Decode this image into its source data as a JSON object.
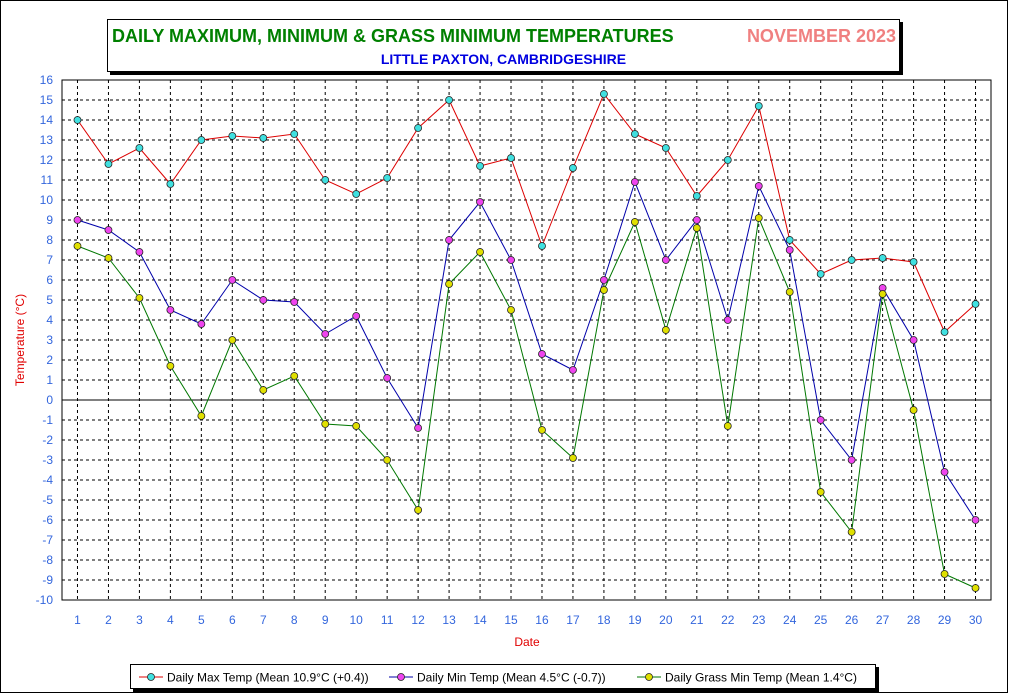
{
  "title": {
    "main": "DAILY MAXIMUM, MINIMUM & GRASS MINIMUM TEMPERATURES",
    "month": "NOVEMBER 2023",
    "subtitle": "LITTLE PAXTON, CAMBRIDGESHIRE"
  },
  "colors": {
    "title_main": "#008000",
    "title_month": "#f08080",
    "subtitle": "#0000e0",
    "axis_labels": "#e00000",
    "tick_labels": "#3366dd"
  },
  "chart_data": {
    "type": "line",
    "title": "DAILY MAXIMUM, MINIMUM & GRASS MINIMUM TEMPERATURES",
    "xlabel": "Date",
    "ylabel": "Temperature (°C)",
    "ylim": [
      -10,
      16
    ],
    "grid": true,
    "legend_position": "bottom",
    "x": [
      1,
      2,
      3,
      4,
      5,
      6,
      7,
      8,
      9,
      10,
      11,
      12,
      13,
      14,
      15,
      16,
      17,
      18,
      19,
      20,
      21,
      22,
      23,
      24,
      25,
      26,
      27,
      28,
      29,
      30
    ],
    "series": [
      {
        "name": "Daily Max Temp (Mean 10.9°C (+0.4))",
        "line_color": "#dd0000",
        "marker_color": "#40e0e0",
        "values": [
          14.0,
          11.8,
          12.6,
          10.8,
          13.0,
          13.2,
          13.1,
          13.3,
          11.0,
          10.3,
          11.1,
          13.6,
          15.0,
          11.7,
          12.1,
          7.7,
          11.6,
          15.3,
          13.3,
          12.6,
          10.2,
          12.0,
          14.7,
          8.0,
          6.3,
          7.0,
          7.1,
          6.9,
          3.4,
          4.8
        ]
      },
      {
        "name": "Daily Min Temp (Mean 4.5°C (-0.7))",
        "line_color": "#0000aa",
        "marker_color": "#ee44ee",
        "values": [
          9.0,
          8.5,
          7.4,
          4.5,
          3.8,
          6.0,
          5.0,
          4.9,
          3.3,
          4.2,
          1.1,
          -1.4,
          8.0,
          9.9,
          7.0,
          2.3,
          1.5,
          6.0,
          10.9,
          7.0,
          9.0,
          4.0,
          10.7,
          7.5,
          -1.0,
          -3.0,
          5.6,
          3.0,
          -3.6,
          -6.0
        ]
      },
      {
        "name": "Daily Grass Min Temp (Mean 1.4°C)",
        "line_color": "#007700",
        "marker_color": "#e0e000",
        "values": [
          7.7,
          7.1,
          5.1,
          1.7,
          -0.8,
          3.0,
          0.5,
          1.2,
          -1.2,
          -1.3,
          -3.0,
          -5.5,
          5.8,
          7.4,
          4.5,
          -1.5,
          -2.9,
          5.5,
          8.9,
          3.5,
          8.6,
          -1.3,
          9.1,
          5.4,
          -4.6,
          -6.6,
          5.3,
          -0.5,
          -8.7,
          -9.4
        ]
      }
    ]
  }
}
